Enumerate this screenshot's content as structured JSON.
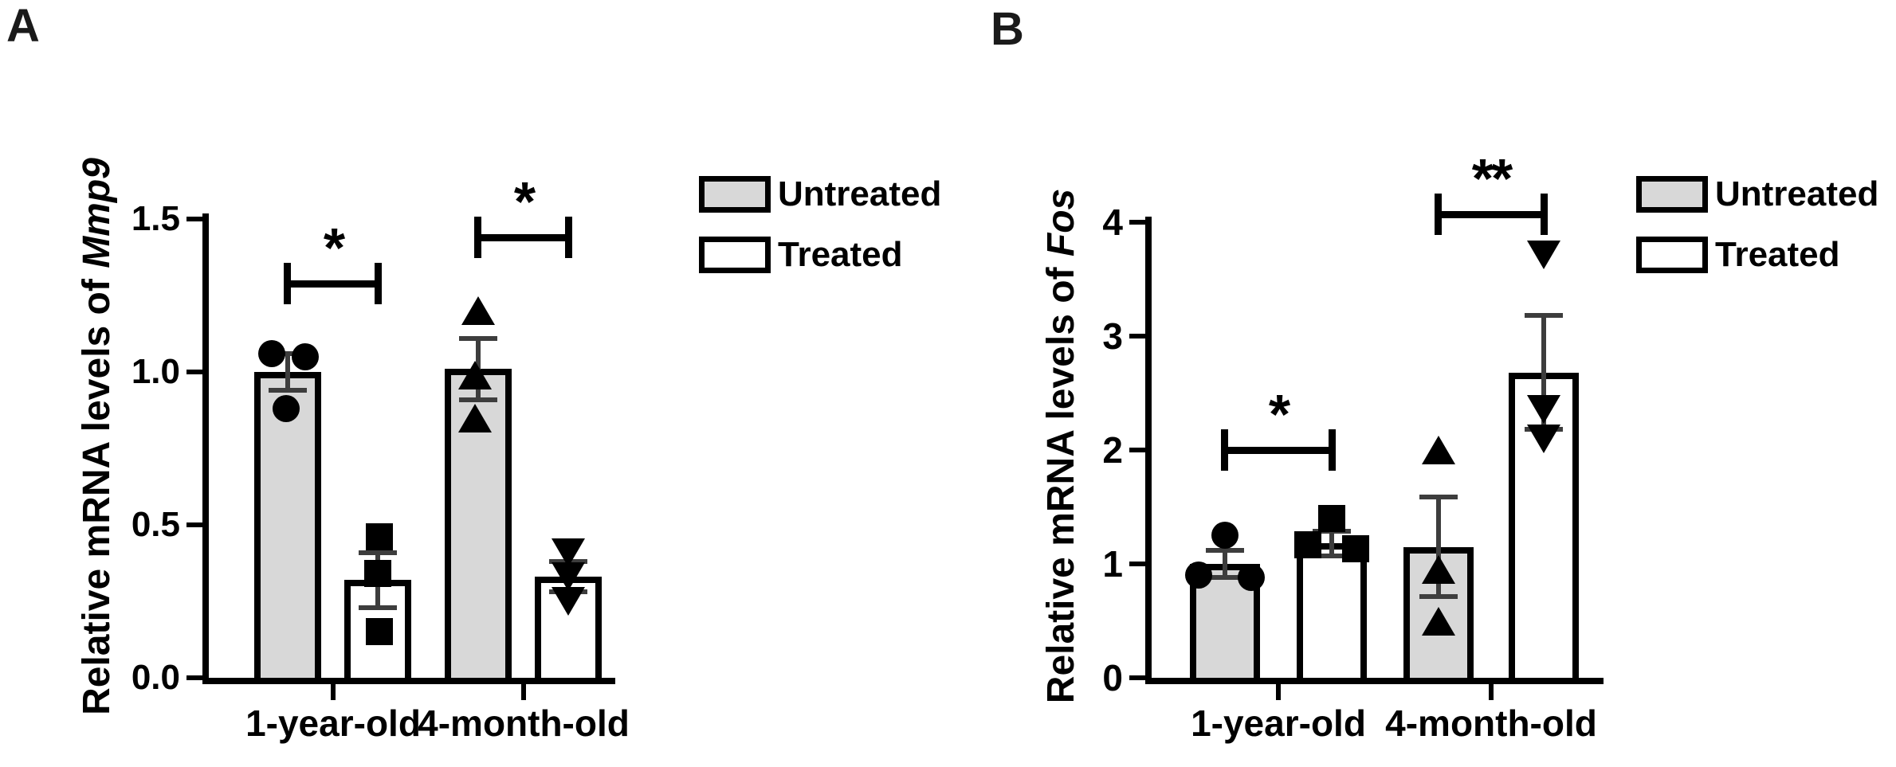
{
  "chart_data": [
    {
      "type": "bar",
      "panel_label": "A",
      "title_prefix": "Relative mRNA levels of ",
      "title_gene": "Mmp9",
      "categories": [
        "1-year-old",
        "4-month-old"
      ],
      "series": [
        {
          "name": "Untreated",
          "fill": "#d8d8d8",
          "values": [
            1.0,
            1.01
          ],
          "sem": [
            0.06,
            0.1
          ],
          "points": [
            [
              1.06,
              1.05,
              0.88
            ],
            [
              1.2,
              0.99,
              0.85
            ]
          ],
          "point_dx": [
            [
              -20,
              22,
              -2
            ],
            [
              0,
              -4,
              -4
            ]
          ],
          "markers": [
            "circle",
            "tri-up"
          ]
        },
        {
          "name": "Treated",
          "fill": "#ffffff",
          "values": [
            0.32,
            0.33
          ],
          "sem": [
            0.09,
            0.05
          ],
          "points": [
            [
              0.46,
              0.34,
              0.15
            ],
            [
              0.41,
              0.33,
              0.25
            ]
          ],
          "point_dx": [
            [
              2,
              0,
              2
            ],
            [
              0,
              0,
              0
            ]
          ],
          "markers": [
            "square",
            "tri-down"
          ]
        }
      ],
      "ylim": [
        0,
        1.5
      ],
      "yticks": [
        "0.0",
        "0.5",
        "1.0",
        "1.5"
      ],
      "grid": false,
      "legend": [
        "Untreated",
        "Treated"
      ],
      "legend_position": "top-right",
      "significance": [
        {
          "category": 0,
          "label": "*",
          "y": 1.29
        },
        {
          "category": 1,
          "label": "*",
          "y": 1.44
        }
      ]
    },
    {
      "type": "bar",
      "panel_label": "B",
      "title_prefix": "Relative mRNA levels of ",
      "title_gene": "Fos",
      "categories": [
        "1-year-old",
        "4-month-old"
      ],
      "series": [
        {
          "name": "Untreated",
          "fill": "#d8d8d8",
          "values": [
            1.0,
            1.15
          ],
          "sem": [
            0.12,
            0.44
          ],
          "points": [
            [
              1.25,
              0.9,
              0.88
            ],
            [
              2.0,
              0.95,
              0.5
            ]
          ],
          "point_dx": [
            [
              0,
              -33,
              33
            ],
            [
              0,
              0,
              0
            ]
          ],
          "markers": [
            "circle",
            "tri-up"
          ]
        },
        {
          "name": "Treated",
          "fill": "#ffffff",
          "values": [
            1.18,
            2.68
          ],
          "sem": [
            0.11,
            0.5
          ],
          "points": [
            [
              1.4,
              1.17,
              1.13
            ],
            [
              3.71,
              2.36,
              2.1
            ]
          ],
          "point_dx": [
            [
              0,
              -30,
              30
            ],
            [
              0,
              0,
              0
            ]
          ],
          "markers": [
            "square",
            "tri-down"
          ]
        }
      ],
      "ylim": [
        0,
        4
      ],
      "yticks": [
        "0",
        "1",
        "2",
        "3",
        "4"
      ],
      "grid": false,
      "legend": [
        "Untreated",
        "Treated"
      ],
      "legend_position": "top-right",
      "significance": [
        {
          "category": 0,
          "label": "*",
          "y": 2.0
        },
        {
          "category": 1,
          "label": "**",
          "y": 4.07
        }
      ]
    }
  ]
}
